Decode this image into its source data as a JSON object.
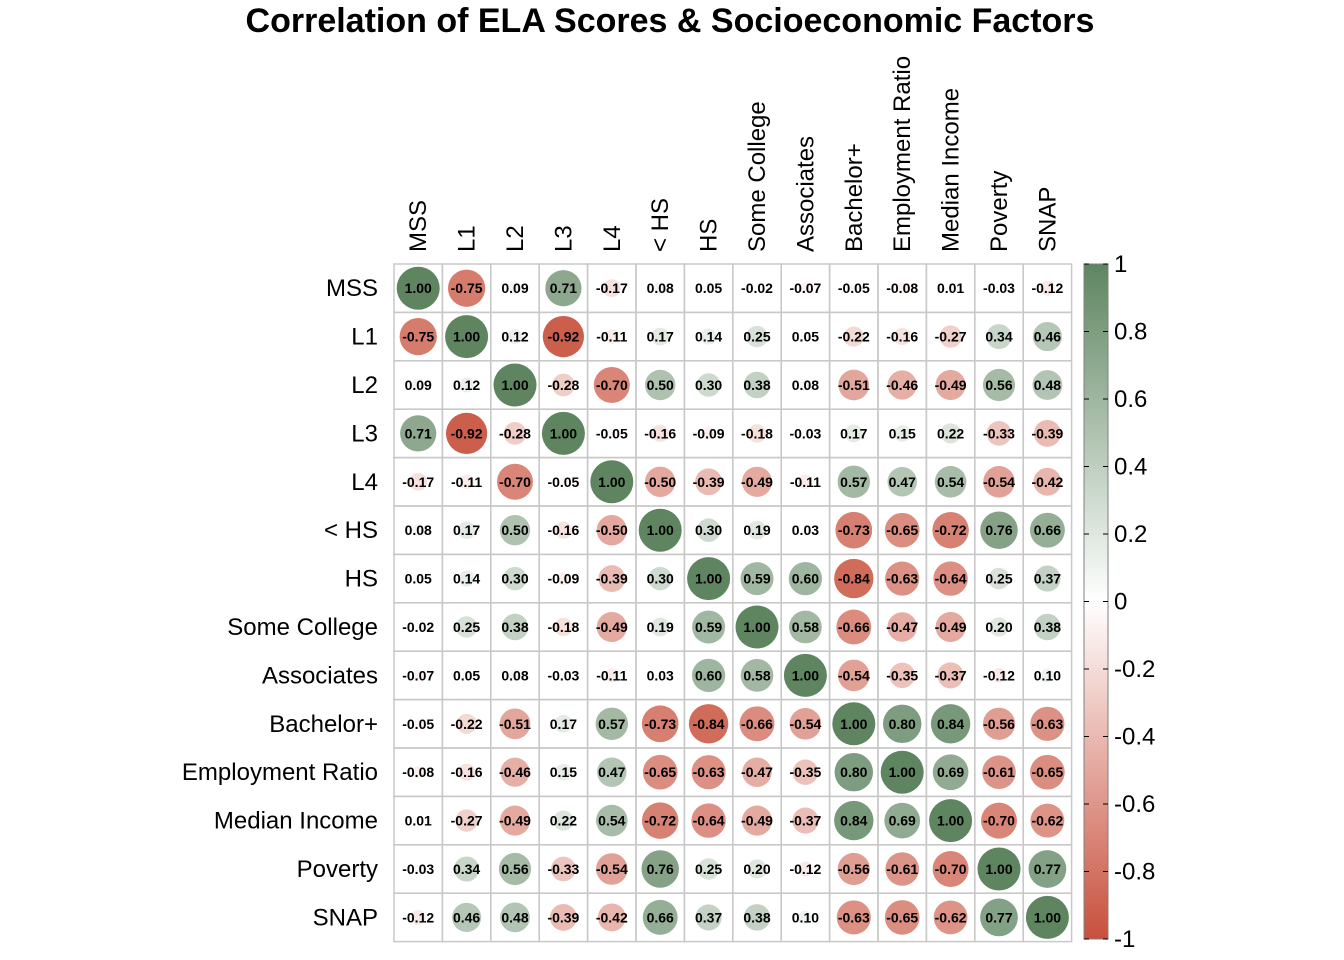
{
  "chart_data": {
    "type": "heatmap",
    "title": "Correlation of ELA Scores & Socioeconomic Factors",
    "variables": [
      "MSS",
      "L1",
      "L2",
      "L3",
      "L4",
      "< HS",
      "HS",
      "Some College",
      "Associates",
      "Bachelor+",
      "Employment Ratio",
      "Median Income",
      "Poverty",
      "SNAP"
    ],
    "matrix": [
      [
        1.0,
        -0.75,
        0.09,
        0.71,
        -0.17,
        0.08,
        0.05,
        -0.02,
        -0.07,
        -0.05,
        -0.08,
        0.01,
        -0.03,
        -0.12
      ],
      [
        -0.75,
        1.0,
        0.12,
        -0.92,
        -0.11,
        0.17,
        0.14,
        0.25,
        0.05,
        -0.22,
        -0.16,
        -0.27,
        0.34,
        0.46
      ],
      [
        0.09,
        0.12,
        1.0,
        -0.28,
        -0.7,
        0.5,
        0.3,
        0.38,
        0.08,
        -0.51,
        -0.46,
        -0.49,
        0.56,
        0.48
      ],
      [
        0.71,
        -0.92,
        -0.28,
        1.0,
        -0.05,
        -0.16,
        -0.09,
        -0.18,
        -0.03,
        0.17,
        0.15,
        0.22,
        -0.33,
        -0.39
      ],
      [
        -0.17,
        -0.11,
        -0.7,
        -0.05,
        1.0,
        -0.5,
        -0.39,
        -0.49,
        -0.11,
        0.57,
        0.47,
        0.54,
        -0.54,
        -0.42
      ],
      [
        0.08,
        0.17,
        0.5,
        -0.16,
        -0.5,
        1.0,
        0.3,
        0.19,
        0.03,
        -0.73,
        -0.65,
        -0.72,
        0.76,
        0.66
      ],
      [
        0.05,
        0.14,
        0.3,
        -0.09,
        -0.39,
        0.3,
        1.0,
        0.59,
        0.6,
        -0.84,
        -0.63,
        -0.64,
        0.25,
        0.37
      ],
      [
        -0.02,
        0.25,
        0.38,
        -0.18,
        -0.49,
        0.19,
        0.59,
        1.0,
        0.58,
        -0.66,
        -0.47,
        -0.49,
        0.2,
        0.38
      ],
      [
        -0.07,
        0.05,
        0.08,
        -0.03,
        -0.11,
        0.03,
        0.6,
        0.58,
        1.0,
        -0.54,
        -0.35,
        -0.37,
        -0.12,
        0.1
      ],
      [
        -0.05,
        -0.22,
        -0.51,
        0.17,
        0.57,
        -0.73,
        -0.84,
        -0.66,
        -0.54,
        1.0,
        0.8,
        0.84,
        -0.56,
        -0.63
      ],
      [
        -0.08,
        -0.16,
        -0.46,
        0.15,
        0.47,
        -0.65,
        -0.63,
        -0.47,
        -0.35,
        0.8,
        1.0,
        0.69,
        -0.61,
        -0.65
      ],
      [
        0.01,
        -0.27,
        -0.49,
        0.22,
        0.54,
        -0.72,
        -0.64,
        -0.49,
        -0.37,
        0.84,
        0.69,
        1.0,
        -0.7,
        -0.62
      ],
      [
        -0.03,
        0.34,
        0.56,
        -0.33,
        -0.54,
        0.76,
        0.25,
        0.2,
        -0.12,
        -0.56,
        -0.61,
        -0.7,
        1.0,
        0.77
      ],
      [
        -0.12,
        0.46,
        0.48,
        -0.39,
        -0.42,
        0.66,
        0.37,
        0.38,
        0.1,
        -0.63,
        -0.65,
        -0.62,
        0.77,
        1.0
      ]
    ],
    "value_range": [
      -1,
      1
    ],
    "colorbar_ticks": [
      "1",
      "0.8",
      "0.6",
      "0.4",
      "0.2",
      "0",
      "-0.2",
      "-0.4",
      "-0.6",
      "-0.8",
      "-1"
    ],
    "colors": {
      "negative": "#C8503C",
      "zero": "#FFFFFF",
      "positive": "#5E8560",
      "grid": "#C8C8C8"
    },
    "legend_position": "right"
  }
}
